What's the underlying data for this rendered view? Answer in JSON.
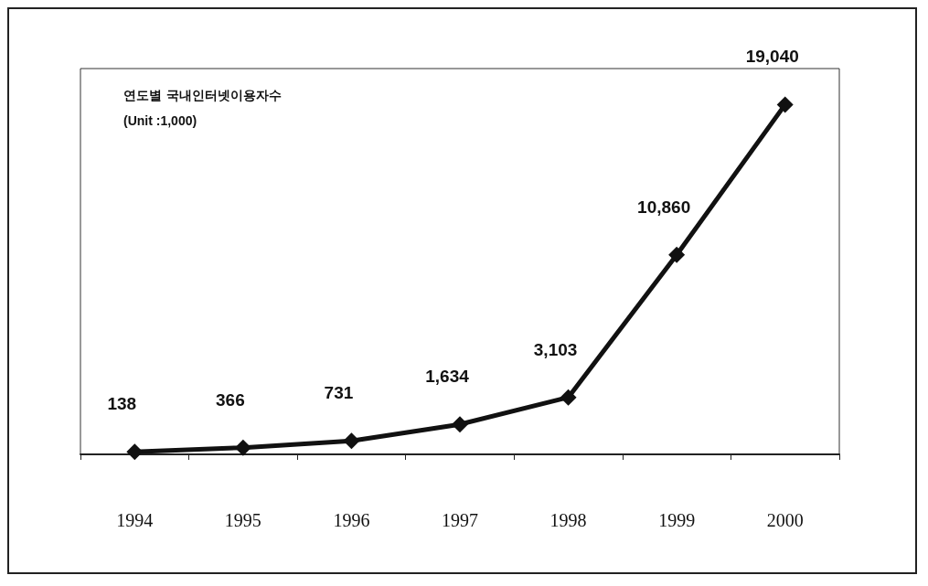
{
  "chart_data": {
    "type": "line",
    "title": "연도별 국내인터넷이용자수",
    "subtitle": "(Unit :1,000)",
    "categories": [
      "1994",
      "1995",
      "1996",
      "1997",
      "1998",
      "1999",
      "2000"
    ],
    "series": [
      {
        "color": "#111111",
        "values": [
          138,
          366,
          731,
          1634,
          3103,
          10860,
          19040
        ],
        "value_labels": [
          "138",
          "366",
          "731",
          "1,634",
          "3,103",
          "10,860",
          "19,040"
        ]
      }
    ],
    "marker": "diamond",
    "line_style": "solid",
    "grid": false
  }
}
